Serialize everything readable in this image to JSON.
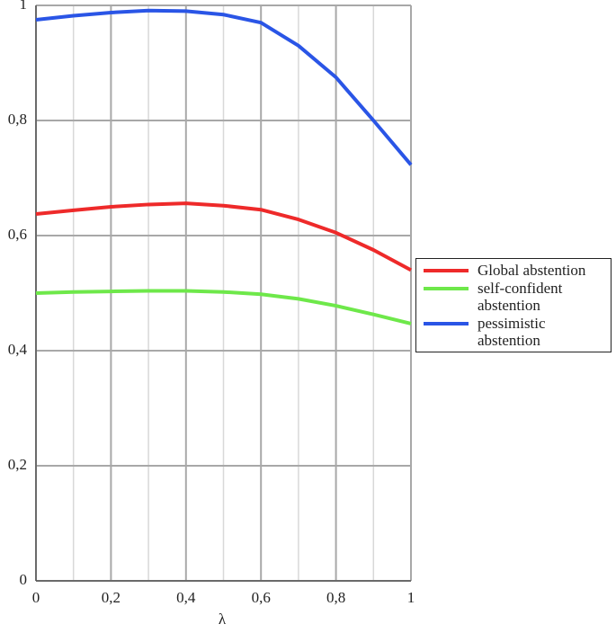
{
  "chart_data": {
    "type": "line",
    "x_label": "λ",
    "x": [
      0,
      0.1,
      0.2,
      0.3,
      0.4,
      0.5,
      0.6,
      0.7,
      0.8,
      0.9,
      1
    ],
    "series": [
      {
        "name": "Global abstention",
        "color": "#ee2a2a",
        "values": [
          0.6375,
          0.644,
          0.65,
          0.654,
          0.656,
          0.652,
          0.645,
          0.628,
          0.605,
          0.575,
          0.54
        ]
      },
      {
        "name": "self-confident abstention",
        "color": "#6ee84a",
        "values": [
          0.5,
          0.502,
          0.503,
          0.504,
          0.504,
          0.502,
          0.498,
          0.49,
          0.478,
          0.463,
          0.447
        ]
      },
      {
        "name": "pessimistic abstention",
        "color": "#2a55e6",
        "values": [
          0.975,
          0.982,
          0.9875,
          0.991,
          0.99,
          0.984,
          0.97,
          0.93,
          0.875,
          0.8,
          0.723
        ]
      }
    ],
    "xlim": [
      0,
      1
    ],
    "ylim": [
      0,
      1
    ],
    "xticks": [
      0,
      {
        "value": 0.2,
        "label": "0,2"
      },
      {
        "value": 0.4,
        "label": "0,4"
      },
      {
        "value": 0.6,
        "label": "0,6"
      },
      {
        "value": 0.8,
        "label": "0,8"
      },
      1
    ],
    "xminorticks": [
      0.1,
      0.3,
      0.5,
      0.7,
      0.9
    ],
    "yticks": [
      0,
      {
        "value": 0.2,
        "label": "0,2"
      },
      {
        "value": 0.4,
        "label": "0,4"
      },
      {
        "value": 0.6,
        "label": "0,6"
      },
      {
        "value": 0.8,
        "label": "0,8"
      },
      1
    ],
    "grid": true,
    "legend": "right"
  }
}
